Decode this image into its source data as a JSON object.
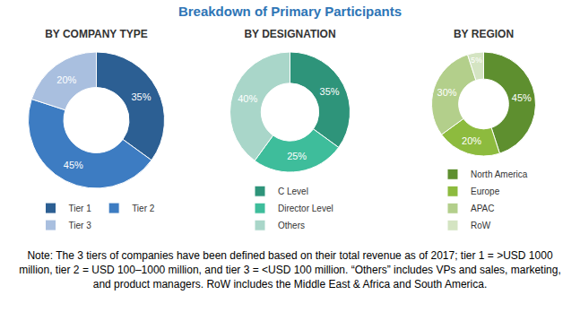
{
  "title": "Breakdown of Primary Participants",
  "chart_data": [
    {
      "type": "donut",
      "title": "BY COMPANY TYPE",
      "categories": [
        "Tier 1",
        "Tier 2",
        "Tier 3"
      ],
      "values": [
        35,
        45,
        20
      ],
      "value_labels": [
        "35%",
        "45%",
        "20%"
      ],
      "colors": [
        "#2c5f93",
        "#3d7cc2",
        "#a9bfdf"
      ],
      "data_labels": true,
      "legend": "bottom"
    },
    {
      "type": "donut",
      "title": "BY DESIGNATION",
      "categories": [
        "C Level",
        "Director Level",
        "Others"
      ],
      "values": [
        35,
        25,
        40
      ],
      "value_labels": [
        "35%",
        "25%",
        "40%"
      ],
      "colors": [
        "#2e947a",
        "#3ebd9b",
        "#a9d6c9"
      ],
      "data_labels": true,
      "legend": "bottom"
    },
    {
      "type": "donut",
      "title": "BY REGION",
      "categories": [
        "North America",
        "Europe",
        "APAC",
        "RoW"
      ],
      "values": [
        45,
        20,
        30,
        5
      ],
      "value_labels": [
        "45%",
        "20%",
        "30%",
        "5%"
      ],
      "colors": [
        "#5e8f2f",
        "#8dbb3e",
        "#b3cf8b",
        "#d4e4c2"
      ],
      "data_labels": true,
      "legend": "bottom"
    }
  ],
  "note": "Note: The 3 tiers of companies have been defined based on their total revenue as of 2017; tier 1 = >USD 1000 million, tier 2 = USD 100–1000 million, and tier 3 = <USD 100 million. “Others” includes VPs and sales, marketing, and product managers. RoW includes the Middle East & Africa and South America."
}
